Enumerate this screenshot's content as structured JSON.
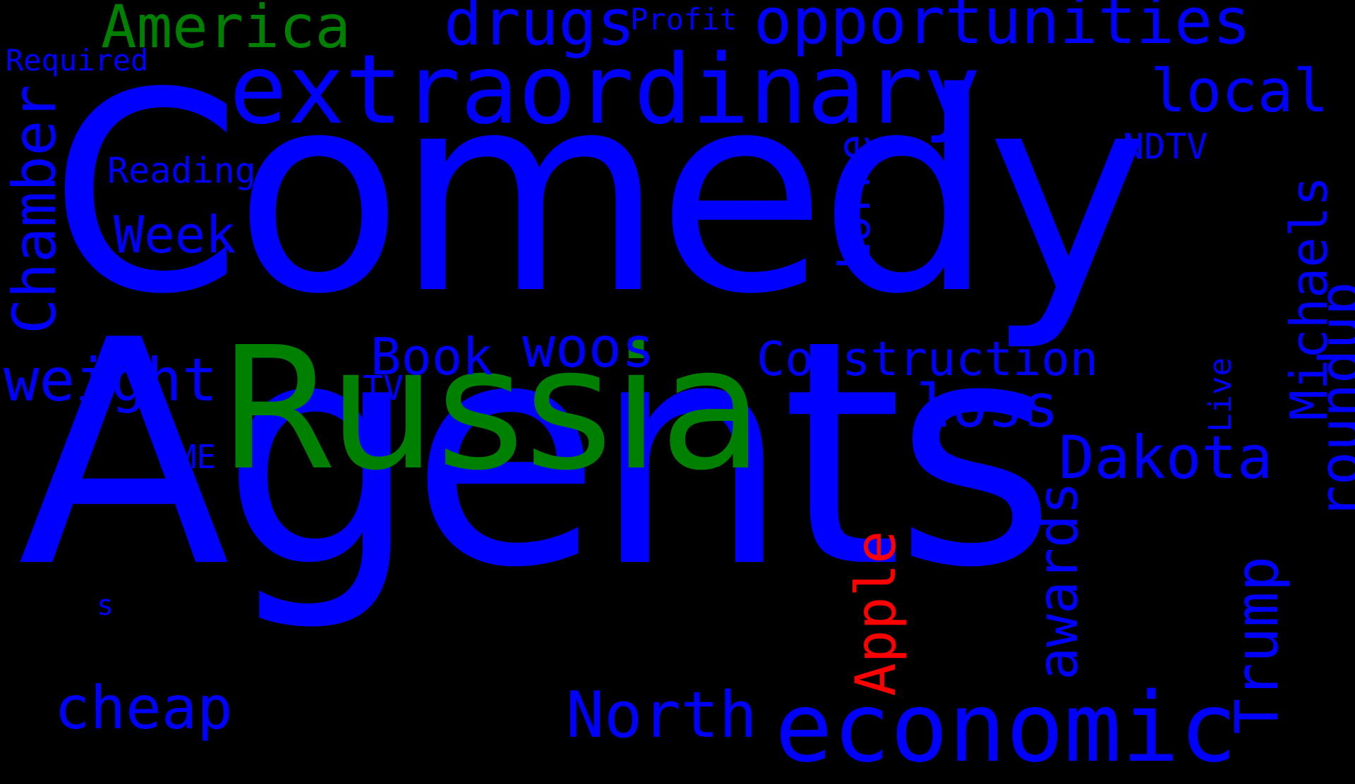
{
  "colors": {
    "background": "#000000",
    "blue": "#0000ff",
    "green": "#008000",
    "red": "#ff0000"
  },
  "words": {
    "comedy": "Comedy",
    "agents": "Agents",
    "russia": "Russia",
    "extraordinary": "extraordinary",
    "opportunities": "opportunities",
    "america": "America",
    "drugs": "drugs",
    "profit": "Profit",
    "required": "Required",
    "local": "local",
    "ndtv": "NDTV",
    "reading": "Reading",
    "week": "Week",
    "chamber": "Chamber",
    "lorne": "Lorne",
    "michaels": "Michaels",
    "roundup": "roundup",
    "live": "Live",
    "book": "Book",
    "woos": "woos",
    "construction": "Construction",
    "weight": "weight",
    "tv": "TV",
    "loss": "loss",
    "dakota": "Dakota",
    "wme": "WME",
    "awards": "awards",
    "apple": "Apple",
    "trump": "Trump",
    "s": "s",
    "cheap": "cheap",
    "north": "North",
    "economic": "economic"
  }
}
